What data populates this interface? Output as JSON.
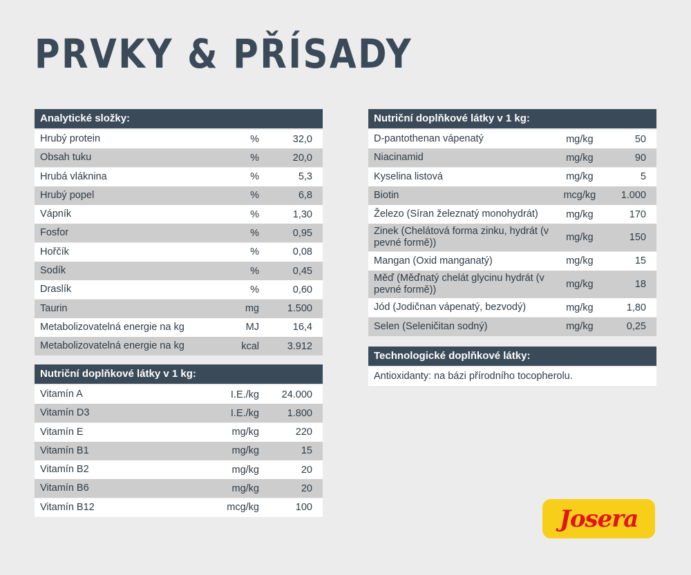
{
  "title": "PRVKY & PŘÍSADY",
  "analytic": {
    "header": "Analytické složky:",
    "rows": [
      {
        "label": "Hrubý protein",
        "unit": "%",
        "value": "32,0"
      },
      {
        "label": "Obsah tuku",
        "unit": "%",
        "value": "20,0"
      },
      {
        "label": "Hrubá vláknina",
        "unit": "%",
        "value": "5,3"
      },
      {
        "label": "Hrubý popel",
        "unit": "%",
        "value": "6,8"
      },
      {
        "label": "Vápník",
        "unit": "%",
        "value": "1,30"
      },
      {
        "label": "Fosfor",
        "unit": "%",
        "value": "0,95"
      },
      {
        "label": "Hořčík",
        "unit": "%",
        "value": "0,08"
      },
      {
        "label": "Sodík",
        "unit": "%",
        "value": "0,45"
      },
      {
        "label": "Draslík",
        "unit": "%",
        "value": "0,60"
      },
      {
        "label": "Taurin",
        "unit": "mg",
        "value": "1.500"
      },
      {
        "label": "Metabolizovatelná energie na kg",
        "unit": "MJ",
        "value": "16,4"
      },
      {
        "label": "Metabolizovatelná energie na kg",
        "unit": "kcal",
        "value": "3.912"
      }
    ]
  },
  "vitamins": {
    "header": "Nutriční doplňkové látky v 1 kg:",
    "rows": [
      {
        "label": "Vitamín A",
        "unit": "I.E./kg",
        "value": "24.000"
      },
      {
        "label": "Vitamín D3",
        "unit": "I.E./kg",
        "value": "1.800"
      },
      {
        "label": "Vitamín E",
        "unit": "mg/kg",
        "value": "220"
      },
      {
        "label": "Vitamín B1",
        "unit": "mg/kg",
        "value": "15"
      },
      {
        "label": "Vitamín B2",
        "unit": "mg/kg",
        "value": "20"
      },
      {
        "label": "Vitamín B6",
        "unit": "mg/kg",
        "value": "20"
      },
      {
        "label": "Vitamín B12",
        "unit": "mcg/kg",
        "value": "100"
      }
    ]
  },
  "minerals": {
    "header": "Nutriční doplňkové látky v 1 kg:",
    "rows": [
      {
        "label": "D-pantothenan vápenatý",
        "unit": "mg/kg",
        "value": "50"
      },
      {
        "label": "Niacinamid",
        "unit": "mg/kg",
        "value": "90"
      },
      {
        "label": "Kyselina listová",
        "unit": "mg/kg",
        "value": "5"
      },
      {
        "label": "Biotin",
        "unit": "mcg/kg",
        "value": "1.000"
      },
      {
        "label": "Železo (Síran železnatý monohydrát)",
        "unit": "mg/kg",
        "value": "170"
      },
      {
        "label": "Zinek (Chelátová forma zinku, hydrát (v pevné formě))",
        "unit": "mg/kg",
        "value": "150"
      },
      {
        "label": "Mangan (Oxid manganatý)",
        "unit": "mg/kg",
        "value": "15"
      },
      {
        "label": "Měď (Měďnatý chelát glycinu hydrát (v pevné formě))",
        "unit": "mg/kg",
        "value": "18"
      },
      {
        "label": "Jód (Jodičnan vápenatý, bezvodý)",
        "unit": "mg/kg",
        "value": "1,80"
      },
      {
        "label": "Selen (Seleničitan sodný)",
        "unit": "mg/kg",
        "value": "0,25"
      }
    ]
  },
  "technological": {
    "header": "Technologické doplňkové látky:",
    "text": "Antioxidanty: na bázi přírodního tocopherolu."
  },
  "logo": {
    "text": "Josera",
    "bg": "#f7cf1a",
    "color": "#e3141b"
  }
}
